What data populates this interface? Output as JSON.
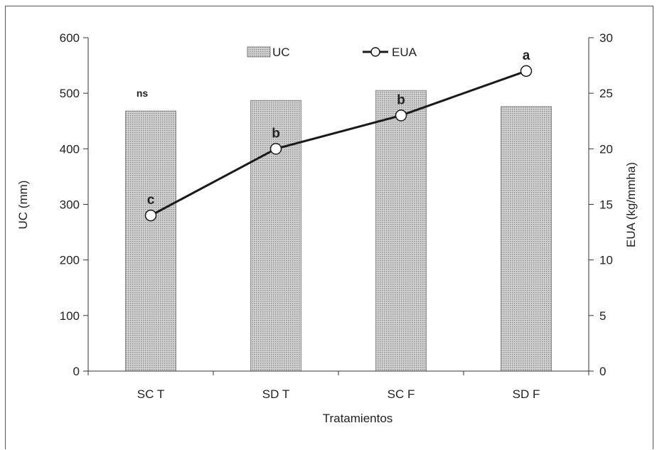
{
  "chart_data": {
    "type": "bar",
    "categories": [
      "SC T",
      "SD T",
      "SC F",
      "SD F"
    ],
    "series": [
      {
        "name": "UC",
        "kind": "bar",
        "axis": "left",
        "values": [
          468,
          487,
          505,
          476
        ],
        "labels": [
          "ns",
          "",
          "",
          ""
        ]
      },
      {
        "name": "EUA",
        "kind": "line",
        "axis": "right",
        "values": [
          14,
          20,
          23,
          27
        ],
        "labels": [
          "c",
          "b",
          "b",
          "a"
        ]
      }
    ],
    "xlabel": "Tratamientos",
    "ylabel": "UC (mm)",
    "y2label": "EUA (kg/mmha)",
    "ylim": [
      0,
      600
    ],
    "y2lim": [
      0,
      30
    ],
    "yticks": [
      "0",
      "100",
      "200",
      "300",
      "400",
      "500",
      "600"
    ],
    "y2ticks": [
      "0",
      "5",
      "10",
      "15",
      "20",
      "25",
      "30"
    ],
    "legend_position": "top",
    "grid": false,
    "colors": {
      "bar_fill": "#c4c4c4",
      "bar_edge": "#8a8a8a",
      "line": "#1a1a1a",
      "marker_fill": "#ffffff"
    }
  }
}
